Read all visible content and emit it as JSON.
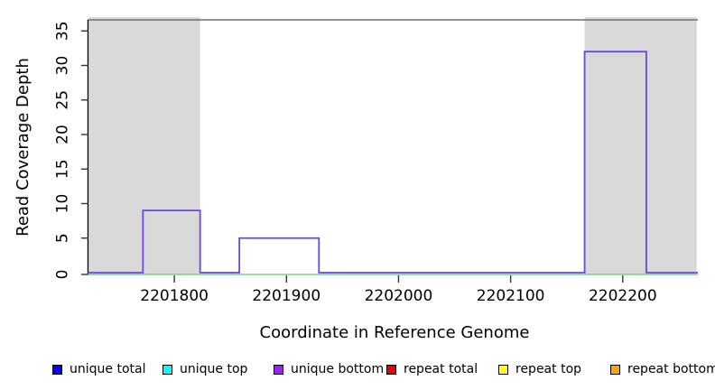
{
  "chart_data": {
    "type": "step-line-coverage",
    "title": "",
    "xlabel": "Coordinate in Reference Genome",
    "ylabel": "Read Coverage Depth",
    "xlim": [
      2201723,
      2202267
    ],
    "ylim": [
      0,
      36.5
    ],
    "x_ticks": [
      2201800,
      2201900,
      2202000,
      2202100,
      2202200
    ],
    "x_tick_labels": [
      "2201800",
      "2201900",
      "2202000",
      "2202100",
      "2202200"
    ],
    "y_ticks": [
      0,
      5,
      10,
      15,
      20,
      25,
      30,
      35
    ],
    "y_tick_labels": [
      "0",
      "5",
      "10",
      "15",
      "20",
      "25",
      "30",
      "35"
    ],
    "grid": false,
    "shaded_regions": [
      {
        "name": "left-shaded-region",
        "x_start": 2201724,
        "x_end": 2201823
      },
      {
        "name": "right-shaded-region",
        "x_start": 2202166,
        "x_end": 2202266
      }
    ],
    "series": [
      {
        "name": "coverage-step",
        "type": "step",
        "color": "#6A45E8",
        "baseline_depth": 0,
        "segments": [
          {
            "x_start": 2201772,
            "x_end": 2201823,
            "depth": 9
          },
          {
            "x_start": 2201858,
            "x_end": 2201929,
            "depth": 5
          },
          {
            "x_start": 2202166,
            "x_end": 2202221,
            "depth": 32
          }
        ]
      },
      {
        "name": "zero-baseline",
        "type": "line",
        "color": "#7CCD7C",
        "depth": 0
      }
    ],
    "colors": {
      "shading": "#D9D9D9",
      "plot_border": "#6E6E6E",
      "axis": "#000000",
      "tick": "#333333"
    },
    "legend_position": "bottom",
    "legend": [
      {
        "label": "unique total",
        "color": "#0000FF"
      },
      {
        "label": "unique top",
        "color": "#00FFFF"
      },
      {
        "label": "unique bottom",
        "color": "#A020F0"
      },
      {
        "label": "repeat total",
        "color": "#EE0000"
      },
      {
        "label": "repeat top",
        "color": "#FFFF00"
      },
      {
        "label": "repeat bottom",
        "color": "#FFA500"
      }
    ]
  }
}
